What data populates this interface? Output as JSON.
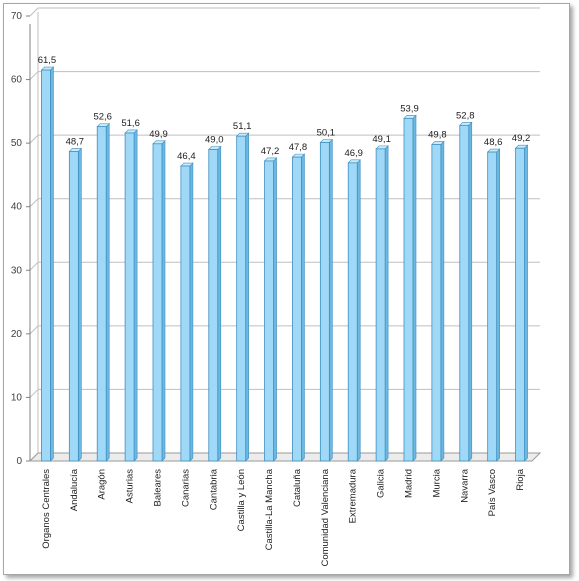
{
  "chart_data": {
    "type": "bar",
    "title": "",
    "xlabel": "",
    "ylabel": "",
    "ylim": [
      0,
      70
    ],
    "yticks": [
      0,
      10,
      20,
      30,
      40,
      50,
      60,
      70
    ],
    "grid": true,
    "legend": "none",
    "categories": [
      "Organos Centrales",
      "Andalucía",
      "Aragón",
      "Asturias",
      "Baleares",
      "Canarias",
      "Cantabria",
      "Castilla y León",
      "Castilla-La Mancha",
      "Cataluña",
      "Comunidad Valenciana",
      "Extremadura",
      "Galicia",
      "Madrid",
      "Murcia",
      "Navarra",
      "País Vasco",
      "Rioja"
    ],
    "values": [
      61.5,
      48.7,
      52.6,
      51.6,
      49.9,
      46.4,
      49.0,
      51.1,
      47.2,
      47.8,
      50.1,
      46.9,
      49.1,
      53.9,
      49.8,
      52.8,
      48.6,
      49.2
    ],
    "value_labels": [
      "61,5",
      "48,7",
      "52,6",
      "51,6",
      "49,9",
      "46,4",
      "49,0",
      "51,1",
      "47,2",
      "47,8",
      "50,1",
      "46,9",
      "49,1",
      "53,9",
      "49,8",
      "52,8",
      "48,6",
      "49,2"
    ],
    "bar_color": "#9fd9f7",
    "bar_edge_color": "#3f8fbf"
  }
}
